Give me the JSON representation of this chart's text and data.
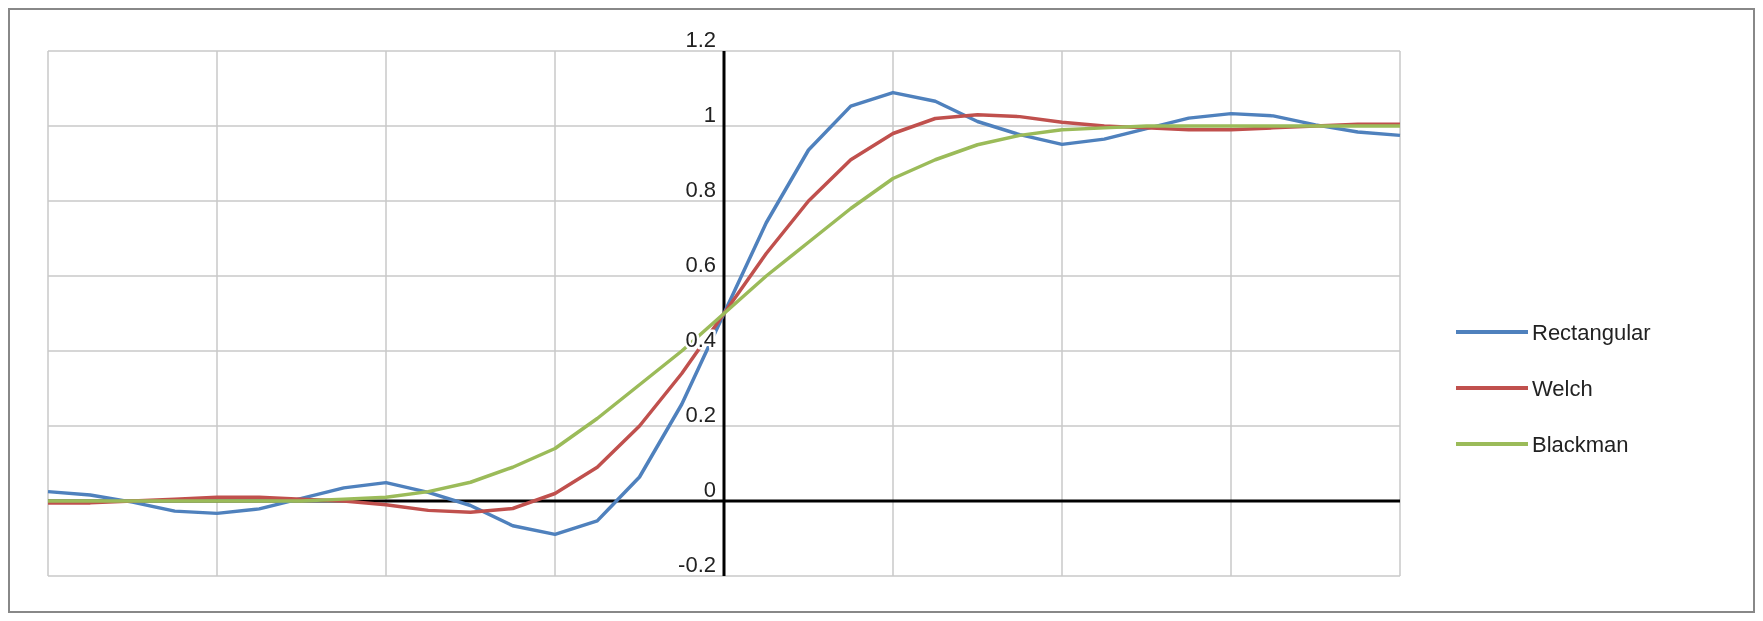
{
  "chart_data": {
    "type": "line",
    "categories": [
      null,
      null,
      null,
      null,
      null,
      null,
      null,
      null,
      null,
      null,
      null,
      null,
      null,
      null,
      null,
      null,
      null,
      null,
      null,
      null,
      null,
      null,
      null,
      null,
      null,
      null,
      null,
      null,
      null,
      null,
      null,
      null,
      null
    ],
    "series": [
      {
        "name": "Rectangular",
        "color": "#4f81bd",
        "values": [
          0.025,
          0.016,
          -0.003,
          -0.027,
          -0.033,
          -0.021,
          0.007,
          0.035,
          0.049,
          0.023,
          -0.012,
          -0.066,
          -0.089,
          -0.053,
          0.064,
          0.258,
          0.5,
          0.742,
          0.936,
          1.053,
          1.089,
          1.066,
          1.012,
          0.977,
          0.951,
          0.965,
          0.993,
          1.021,
          1.033,
          1.027,
          1.003,
          0.984,
          0.975
        ]
      },
      {
        "name": "Welch",
        "color": "#c0504d",
        "values": [
          -0.005,
          -0.005,
          0,
          0.005,
          0.01,
          0.01,
          0.005,
          0,
          -0.01,
          -0.025,
          -0.03,
          -0.02,
          0.02,
          0.09,
          0.2,
          0.34,
          0.5,
          0.66,
          0.8,
          0.91,
          0.98,
          1.02,
          1.03,
          1.025,
          1.01,
          1,
          0.995,
          0.99,
          0.99,
          0.995,
          1,
          1.005,
          1.005
        ]
      },
      {
        "name": "Blackman",
        "color": "#9bbb59",
        "values": [
          0,
          0,
          0,
          0,
          0,
          0,
          0,
          0.005,
          0.01,
          0.025,
          0.05,
          0.09,
          0.14,
          0.22,
          0.31,
          0.4,
          0.5,
          0.6,
          0.69,
          0.78,
          0.86,
          0.91,
          0.95,
          0.975,
          0.99,
          0.995,
          1,
          1,
          1,
          1,
          1,
          1,
          1
        ]
      }
    ],
    "ylim": [
      -0.2,
      1.2
    ],
    "yticks": [
      -0.2,
      0,
      0.2,
      0.4,
      0.6,
      0.8,
      1,
      1.2
    ],
    "tick_labels": "y",
    "grid": true,
    "legend": "right",
    "marker": "none",
    "line_style": "solid"
  }
}
